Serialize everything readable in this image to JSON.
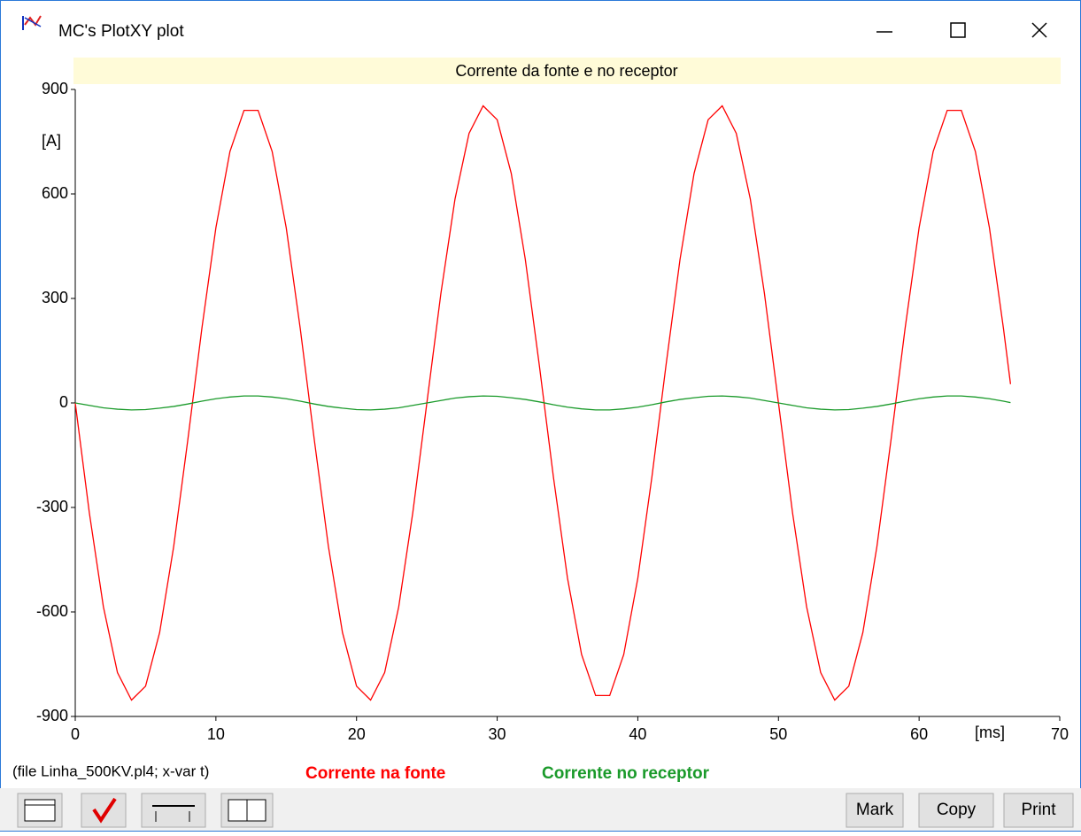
{
  "window": {
    "title": "MC's PlotXY plot",
    "file_info": "(file Linha_500KV.pl4; x-var t)",
    "buttons": [
      "Mark",
      "Copy",
      "Print"
    ]
  },
  "chart_data": {
    "type": "line",
    "title": "Corrente da fonte e no receptor",
    "y_label": "[A]",
    "x_label": "[ms]",
    "x": [
      0,
      1,
      2,
      3,
      4,
      5,
      6,
      7,
      8,
      9,
      10,
      11,
      12,
      13,
      14,
      15,
      16,
      17,
      18,
      19,
      20,
      21,
      22,
      23,
      24,
      25,
      26,
      27,
      28,
      29,
      30,
      31,
      32,
      33,
      34,
      35,
      36,
      37,
      38,
      39,
      40,
      41,
      42,
      43,
      44,
      45,
      46,
      47,
      48,
      49,
      50,
      51,
      52,
      53,
      54,
      55,
      56,
      57,
      58,
      59,
      60,
      61,
      62,
      63,
      64,
      65,
      66,
      66.5
    ],
    "series": [
      {
        "name": "Corrente na fonte",
        "color": "#ff0000",
        "values": [
          0,
          -315,
          -585,
          -774,
          -853,
          -813,
          -659,
          -412,
          -107,
          213,
          503,
          722,
          840,
          840,
          722,
          503,
          213,
          -107,
          -412,
          -659,
          -813,
          -853,
          -774,
          -585,
          -315,
          0,
          315,
          585,
          774,
          853,
          813,
          659,
          412,
          107,
          -213,
          -503,
          -722,
          -840,
          -840,
          -722,
          -503,
          -213,
          107,
          412,
          659,
          813,
          853,
          774,
          585,
          315,
          0,
          -315,
          -585,
          -774,
          -853,
          -813,
          -659,
          -412,
          -107,
          213,
          503,
          722,
          840,
          840,
          722,
          503,
          213,
          54
        ]
      },
      {
        "name": "Corrente no receptor",
        "color": "#1a9a2a",
        "values": [
          0,
          -7,
          -14,
          -18,
          -20,
          -19,
          -15,
          -10,
          -3,
          5,
          12,
          17,
          20,
          20,
          17,
          12,
          5,
          -3,
          -10,
          -15,
          -19,
          -20,
          -18,
          -14,
          -7,
          0,
          7,
          14,
          18,
          20,
          19,
          15,
          10,
          3,
          -5,
          -12,
          -17,
          -20,
          -20,
          -17,
          -12,
          -5,
          3,
          10,
          15,
          19,
          20,
          18,
          14,
          7,
          0,
          -7,
          -14,
          -18,
          -20,
          -19,
          -15,
          -10,
          -3,
          5,
          12,
          17,
          20,
          20,
          17,
          12,
          5,
          1
        ]
      }
    ],
    "xlim": [
      0,
      70
    ],
    "xticks": [
      0,
      10,
      20,
      30,
      40,
      50,
      60,
      70
    ],
    "ylim": [
      -900,
      900
    ],
    "yticks": [
      -900,
      -600,
      -300,
      0,
      300,
      600,
      900
    ],
    "grid": false
  }
}
